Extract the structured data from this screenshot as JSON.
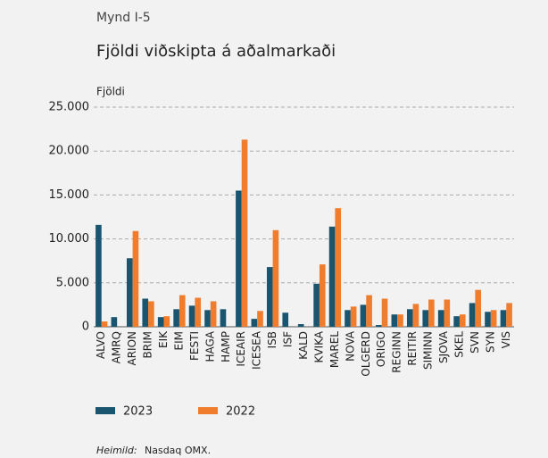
{
  "chart_data": {
    "type": "bar",
    "figure_label": "Mynd I-5",
    "title": "Fjöldi viðskipta á aðalmarkaði",
    "y_label": "Fjöldi",
    "source_label": "Heimild:",
    "source": "Nasdaq OMX.",
    "categories": [
      "ALVO",
      "AMRQ",
      "ARION",
      "BRIM",
      "EIK",
      "EIM",
      "FESTI",
      "HAGA",
      "HAMP",
      "ICEAIR",
      "ICESEA",
      "ISB",
      "ISF",
      "KALD",
      "KVIKA",
      "MAREL",
      "NOVA",
      "OLGERD",
      "ORIGO",
      "REGINN",
      "REITIR",
      "SIMINN",
      "SJOVA",
      "SKEL",
      "SVN",
      "SYN",
      "VIS"
    ],
    "series": [
      {
        "name": "2023",
        "color": "#1a5570",
        "values": [
          11600,
          1100,
          7800,
          3200,
          1100,
          2000,
          2400,
          1900,
          2000,
          15500,
          900,
          6800,
          1600,
          300,
          4900,
          11400,
          1900,
          2500,
          200,
          1400,
          2000,
          1900,
          1900,
          1200,
          2700,
          1700,
          1900
        ]
      },
      {
        "name": "2022",
        "color": "#f07d2e",
        "values": [
          600,
          null,
          10900,
          2900,
          1200,
          3600,
          3300,
          2900,
          null,
          21300,
          1800,
          11000,
          null,
          null,
          7100,
          13500,
          2300,
          3600,
          3200,
          1400,
          2600,
          3100,
          3100,
          1400,
          4200,
          1900,
          2700
        ]
      }
    ],
    "ylim": [
      0,
      25000
    ],
    "yticks": [
      0,
      {
        "value": 5000,
        "label": "5.000"
      },
      {
        "value": 10000,
        "label": "10.000"
      },
      {
        "value": 15000,
        "label": "15.000"
      },
      {
        "value": 20000,
        "label": "20.000"
      },
      {
        "value": 25000,
        "label": "25.000"
      }
    ],
    "grid": true
  }
}
